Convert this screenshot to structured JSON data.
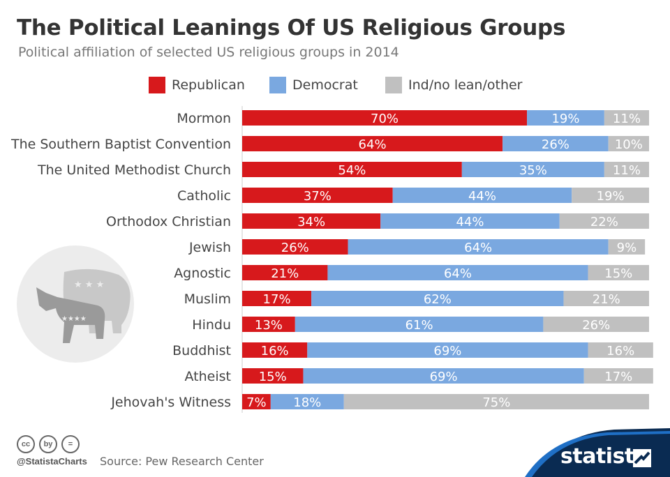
{
  "chart_data": {
    "type": "bar",
    "orientation": "horizontal",
    "stacked": true,
    "title": "The Political Leanings Of US Religious Groups",
    "subtitle": "Political affiliation of selected US religious groups in 2014",
    "categories": [
      "Mormon",
      "The Southern Baptist Convention",
      "The United Methodist Church",
      "Catholic",
      "Orthodox Christian",
      "Jewish",
      "Agnostic",
      "Muslim",
      "Hindu",
      "Buddhist",
      "Atheist",
      "Jehovah's Witness"
    ],
    "series": [
      {
        "name": "Republican",
        "color": "#d7191c",
        "values": [
          70,
          64,
          54,
          37,
          34,
          26,
          21,
          17,
          13,
          16,
          15,
          7
        ]
      },
      {
        "name": "Democrat",
        "color": "#7aa8e0",
        "values": [
          19,
          26,
          35,
          44,
          44,
          64,
          64,
          62,
          61,
          69,
          69,
          18
        ]
      },
      {
        "name": "Ind/no lean/other",
        "color": "#c0c0c0",
        "values": [
          11,
          10,
          11,
          19,
          22,
          9,
          15,
          21,
          26,
          16,
          17,
          75
        ]
      }
    ],
    "value_suffix": "%",
    "xlim": [
      0,
      100
    ],
    "legend_position": "top",
    "grid": false
  },
  "footer": {
    "handle": "@StatistaCharts",
    "source": "Source: Pew Research Center",
    "brand": "statista",
    "license_icons": [
      "cc",
      "by",
      "="
    ]
  }
}
